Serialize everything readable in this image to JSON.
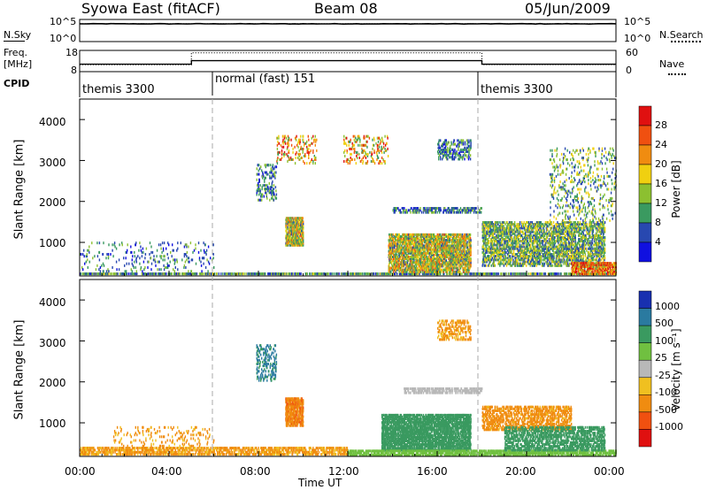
{
  "header": {
    "title": "Syowa East (fitACF)",
    "beam": "Beam 08",
    "date": "05/Jun/2009"
  },
  "top_panels": {
    "nsky_label": "N.Sky",
    "nsearch_label": "N.Search",
    "noise_ticks": [
      "10^5",
      "10^0"
    ],
    "freq_label_1": "Freq.",
    "freq_label_2": "[MHz]",
    "freq_ticks": [
      "18",
      "8"
    ],
    "nave_label": "Nave",
    "nave_ticks": [
      "60",
      "0"
    ],
    "cpid_label": "CPID",
    "cpid_segments": [
      "themis 3300",
      "normal (fast) 151",
      "themis 3300"
    ]
  },
  "axes": {
    "ylabel": "Slant Range [km]",
    "xlabel": "Time UT",
    "range_ticks": [
      "4000",
      "3000",
      "2000",
      "1000"
    ],
    "time_ticks": [
      "00:00",
      "04:00",
      "08:00",
      "12:00",
      "16:00",
      "20:00",
      "00:00"
    ]
  },
  "power_colorbar": {
    "label": "Power [dB]",
    "ticks": [
      "28",
      "24",
      "20",
      "16",
      "12",
      "8",
      "4"
    ],
    "colors": [
      "#e01010",
      "#f05010",
      "#f08c10",
      "#f0d010",
      "#8cc030",
      "#3a9a60",
      "#2848b0",
      "#1010e0"
    ]
  },
  "velocity_colorbar": {
    "label": "Velocity [m s⁻¹]",
    "ticks": [
      "1000",
      "500",
      "100",
      "25",
      "-25",
      "-100",
      "-500",
      "-1000"
    ],
    "colors": [
      "#1830b0",
      "#2a7aa0",
      "#3a9a60",
      "#70c040",
      "#b8b8b8",
      "#f0c020",
      "#f08c10",
      "#f05010",
      "#e01010"
    ]
  },
  "chart_data": [
    {
      "type": "line",
      "title": "Syowa East (fitACF)",
      "subtitle": "Beam 08",
      "date": "05/Jun/2009",
      "xlabel": "Time UT",
      "x_range_hours": [
        0,
        24
      ],
      "series": [
        {
          "name": "N.Sky",
          "x": [
            0,
            24
          ],
          "y": [
            20000,
            20000
          ]
        },
        {
          "name": "N.Search",
          "x": [
            0,
            24
          ],
          "y": [
            20000,
            20000
          ]
        }
      ]
    },
    {
      "type": "line",
      "x_range_hours": [
        0,
        24
      ],
      "series": [
        {
          "name": "Freq.",
          "unit": "MHz",
          "x": [
            0,
            5,
            5,
            18,
            18,
            24
          ],
          "y": [
            11.2,
            11.2,
            13.2,
            13.2,
            11.2,
            11.2
          ]
        },
        {
          "name": "Nave",
          "x": [
            0,
            5,
            5,
            18,
            18,
            24
          ],
          "y": [
            18,
            18,
            58,
            58,
            18,
            18
          ]
        }
      ]
    },
    {
      "type": "table",
      "name": "CPID",
      "segments": [
        {
          "label": "themis 3300",
          "start_hour": 0,
          "end_hour": 6
        },
        {
          "label": "normal (fast) 151",
          "start_hour": 6,
          "end_hour": 18
        },
        {
          "label": "themis 3300",
          "start_hour": 18,
          "end_hour": 24
        }
      ]
    },
    {
      "type": "heatmap",
      "quantity": "Power",
      "unit": "dB",
      "xlabel": "Time UT",
      "ylabel": "Slant Range [km]",
      "xlim_hours": [
        0,
        24
      ],
      "ylim_km": [
        180,
        4500
      ],
      "color_levels": [
        4,
        8,
        12,
        16,
        20,
        24,
        28
      ],
      "regions": [
        {
          "t0": 0.0,
          "t1": 24.0,
          "r0": 200,
          "r1": 260,
          "value": 10,
          "density": 0.55
        },
        {
          "t0": 0.0,
          "t1": 6.0,
          "r0": 260,
          "r1": 1000,
          "value": 8,
          "density": 0.05
        },
        {
          "t0": 7.9,
          "t1": 8.8,
          "r0": 2000,
          "r1": 2900,
          "value": 8,
          "density": 0.2
        },
        {
          "t0": 9.2,
          "t1": 10.0,
          "r0": 900,
          "r1": 1600,
          "value": 16,
          "density": 0.6
        },
        {
          "t0": 8.8,
          "t1": 10.6,
          "r0": 2900,
          "r1": 3600,
          "value": 20,
          "density": 0.12
        },
        {
          "t0": 11.8,
          "t1": 13.8,
          "r0": 2900,
          "r1": 3600,
          "value": 20,
          "density": 0.12
        },
        {
          "t0": 13.8,
          "t1": 17.5,
          "r0": 250,
          "r1": 1200,
          "value": 16,
          "density": 0.55
        },
        {
          "t0": 14.0,
          "t1": 18.0,
          "r0": 1700,
          "r1": 1850,
          "value": 8,
          "density": 0.35
        },
        {
          "t0": 16.0,
          "t1": 17.5,
          "r0": 3000,
          "r1": 3500,
          "value": 8,
          "density": 0.25
        },
        {
          "t0": 18.0,
          "t1": 23.5,
          "r0": 400,
          "r1": 1500,
          "value": 12,
          "density": 0.4
        },
        {
          "t0": 22.0,
          "t1": 24.0,
          "r0": 200,
          "r1": 500,
          "value": 24,
          "density": 0.6
        },
        {
          "t0": 21.0,
          "t1": 24.0,
          "r0": 1500,
          "r1": 3300,
          "value": 12,
          "density": 0.08
        }
      ]
    },
    {
      "type": "heatmap",
      "quantity": "Velocity",
      "unit": "m s-1",
      "xlabel": "Time UT",
      "ylabel": "Slant Range [km]",
      "xlim_hours": [
        0,
        24
      ],
      "ylim_km": [
        180,
        4500
      ],
      "color_levels": [
        -1000,
        -500,
        -100,
        -25,
        25,
        100,
        500,
        1000
      ],
      "regions": [
        {
          "t0": 0.0,
          "t1": 12.0,
          "r0": 200,
          "r1": 400,
          "value": -120,
          "density": 0.45
        },
        {
          "t0": 1.5,
          "t1": 6.0,
          "r0": 400,
          "r1": 900,
          "value": -120,
          "density": 0.07
        },
        {
          "t0": 7.9,
          "t1": 8.8,
          "r0": 2000,
          "r1": 2900,
          "value": 600,
          "density": 0.2
        },
        {
          "t0": 9.2,
          "t1": 10.0,
          "r0": 900,
          "r1": 1600,
          "value": -400,
          "density": 0.6
        },
        {
          "t0": 13.5,
          "t1": 17.5,
          "r0": 300,
          "r1": 1200,
          "value": 200,
          "density": 0.6
        },
        {
          "t0": 12.0,
          "t1": 24.0,
          "r0": 180,
          "r1": 330,
          "value": 60,
          "density": 0.55
        },
        {
          "t0": 14.5,
          "t1": 18.0,
          "r0": 1700,
          "r1": 1850,
          "value": 0,
          "density": 0.45
        },
        {
          "t0": 18.0,
          "t1": 22.0,
          "r0": 800,
          "r1": 1400,
          "value": -150,
          "density": 0.35
        },
        {
          "t0": 19.0,
          "t1": 23.5,
          "r0": 300,
          "r1": 900,
          "value": 200,
          "density": 0.4
        },
        {
          "t0": 16.0,
          "t1": 17.5,
          "r0": 3000,
          "r1": 3500,
          "value": -120,
          "density": 0.25
        }
      ]
    }
  ]
}
